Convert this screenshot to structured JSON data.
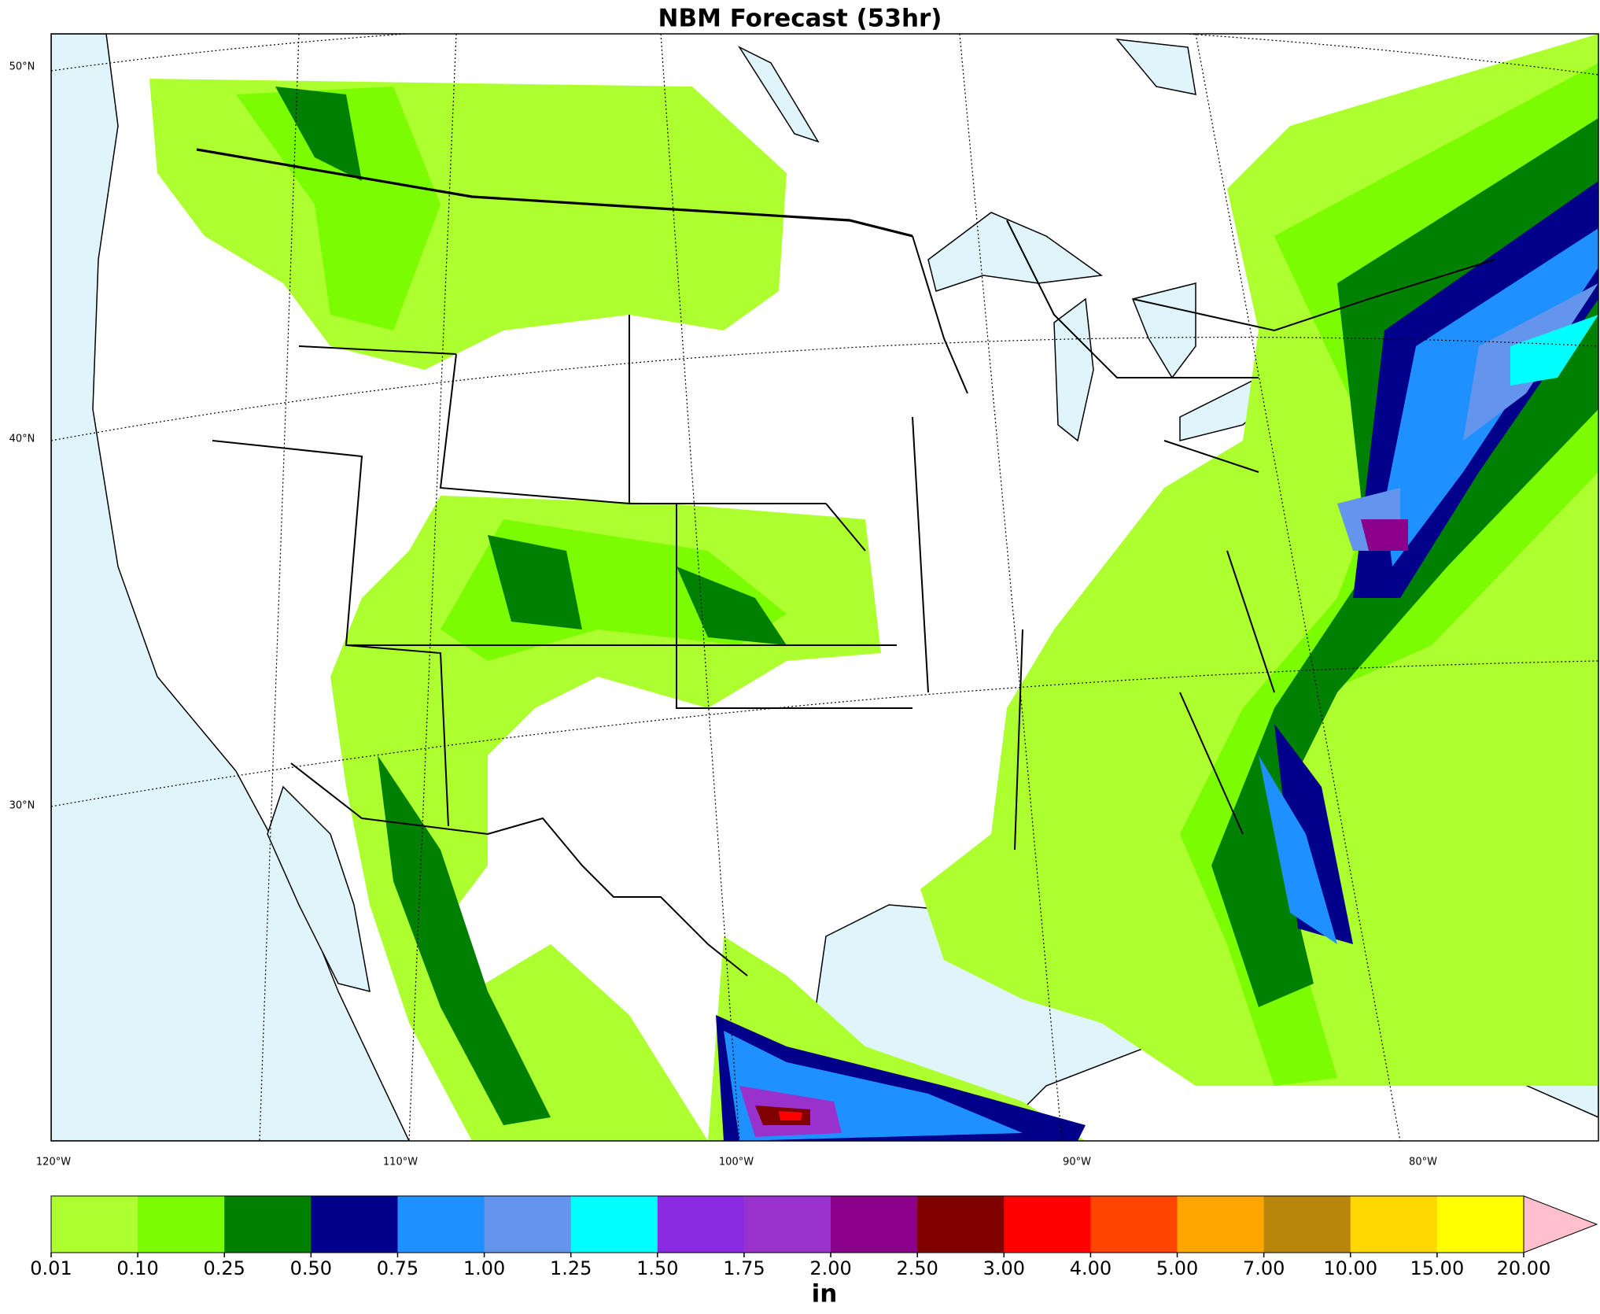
{
  "title": "NBM Forecast (53hr)",
  "map": {
    "lat_labels": [
      "50°N",
      "40°N",
      "30°N"
    ],
    "lon_labels": [
      "120°W",
      "110°W",
      "100°W",
      "90°W",
      "80°W"
    ]
  },
  "colorbar": {
    "unit": "in",
    "levels": [
      {
        "value": 0.01,
        "label": "0.01"
      },
      {
        "value": 0.1,
        "label": "0.10"
      },
      {
        "value": 0.25,
        "label": "0.25"
      },
      {
        "value": 0.5,
        "label": "0.50"
      },
      {
        "value": 0.75,
        "label": "0.75"
      },
      {
        "value": 1,
        "label": "1.00"
      },
      {
        "value": 1.25,
        "label": "1.25"
      },
      {
        "value": 1.5,
        "label": "1.50"
      },
      {
        "value": 1.75,
        "label": "1.75"
      },
      {
        "value": 2,
        "label": "2.00"
      },
      {
        "value": 2.5,
        "label": "2.50"
      },
      {
        "value": 3,
        "label": "3.00"
      },
      {
        "value": 4,
        "label": "4.00"
      },
      {
        "value": 5,
        "label": "5.00"
      },
      {
        "value": 7,
        "label": "7.00"
      },
      {
        "value": 10,
        "label": "10.00"
      },
      {
        "value": 15,
        "label": "15.00"
      },
      {
        "value": 20,
        "label": "20.00"
      }
    ],
    "colors": [
      "#adff2f",
      "#7cfc00",
      "#008000",
      "#00008b",
      "#1e90ff",
      "#6495ed",
      "#00ffff",
      "#8a2be2",
      "#9932cc",
      "#8b008b",
      "#800000",
      "#ff0000",
      "#ff4500",
      "#ffa500",
      "#b8860b",
      "#ffd700",
      "#ffff00"
    ],
    "extend_color": "#ffc0cb"
  }
}
